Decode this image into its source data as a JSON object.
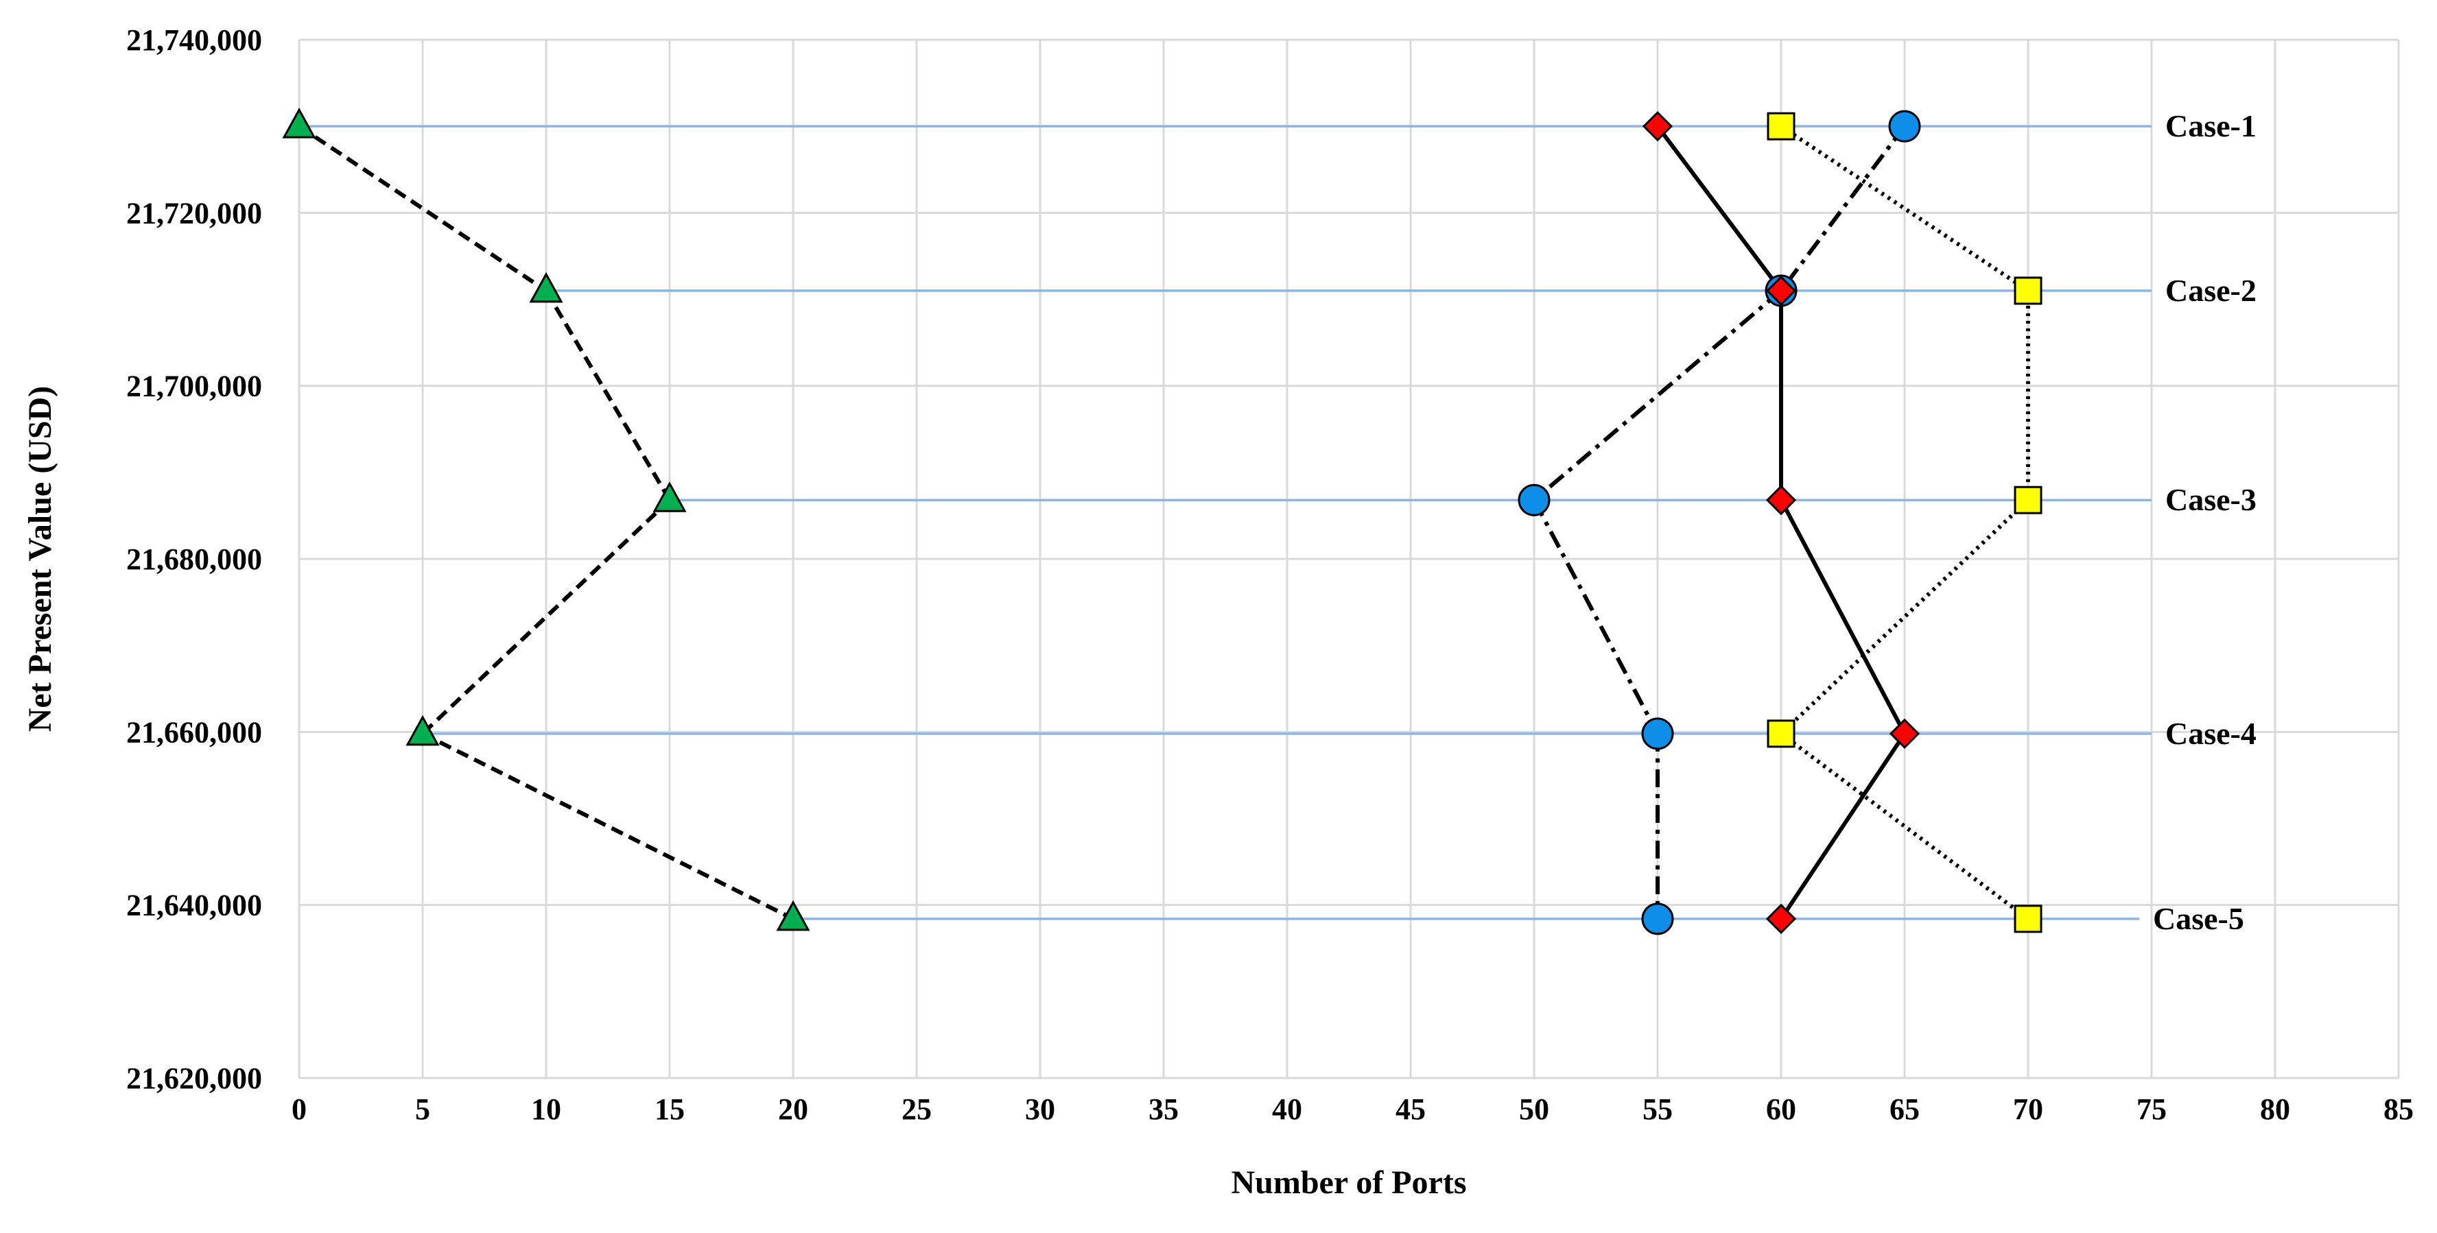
{
  "chart_data": {
    "type": "scatter",
    "title": "",
    "xlabel": "Number of Ports",
    "ylabel": "Net Present Value (USD)",
    "xlim": [
      0,
      85
    ],
    "ylim": [
      21620000,
      21740000
    ],
    "x_ticks": [
      0,
      5,
      10,
      15,
      20,
      25,
      30,
      35,
      40,
      45,
      50,
      55,
      60,
      65,
      70,
      75,
      80,
      85
    ],
    "y_ticks": [
      21620000,
      21640000,
      21660000,
      21680000,
      21700000,
      21720000,
      21740000
    ],
    "y_tick_labels": [
      "21,620,000",
      "21,640,000",
      "21,660,000",
      "21,680,000",
      "21,700,000",
      "21,720,000",
      "21,740,000"
    ],
    "grid": true,
    "legend": "none",
    "cases": [
      {
        "label": "Case-1",
        "y": 21730000,
        "x_start": 0,
        "x_end": 75
      },
      {
        "label": "Case-2",
        "y": 21711000,
        "x_start": 10,
        "x_end": 75
      },
      {
        "label": "Case-3",
        "y": 21686800,
        "x_start": 15,
        "x_end": 75
      },
      {
        "label": "Case-4",
        "y": 21659800,
        "x_start": 5,
        "x_end": 75
      },
      {
        "label": "Case-5",
        "y": 21638400,
        "x_start": 20,
        "x_end": 74.5
      }
    ],
    "case_line_color": "#8fb4e3",
    "series": [
      {
        "marker": "triangle",
        "color": "#00b050",
        "line_style": "dashed",
        "points": [
          {
            "x": 0,
            "y": 21730000
          },
          {
            "x": 10,
            "y": 21711000
          },
          {
            "x": 15,
            "y": 21686800
          },
          {
            "x": 5,
            "y": 21659800
          },
          {
            "x": 20,
            "y": 21638400
          }
        ]
      },
      {
        "marker": "circle",
        "color": "#0d8ee9",
        "line_style": "dash-dot",
        "points": [
          {
            "x": 65,
            "y": 21730000
          },
          {
            "x": 60,
            "y": 21711000
          },
          {
            "x": 50,
            "y": 21686800
          },
          {
            "x": 55,
            "y": 21659800
          },
          {
            "x": 55,
            "y": 21638400
          }
        ]
      },
      {
        "marker": "diamond",
        "color": "#ff0000",
        "line_style": "solid",
        "points": [
          {
            "x": 55,
            "y": 21730000
          },
          {
            "x": 60,
            "y": 21711000
          },
          {
            "x": 60,
            "y": 21686800
          },
          {
            "x": 65,
            "y": 21659800
          },
          {
            "x": 60,
            "y": 21638400
          }
        ]
      },
      {
        "marker": "square",
        "color": "#ffff00",
        "line_style": "dotted",
        "points": [
          {
            "x": 60,
            "y": 21730000
          },
          {
            "x": 70,
            "y": 21711000
          },
          {
            "x": 70,
            "y": 21686800
          },
          {
            "x": 60,
            "y": 21659800
          },
          {
            "x": 70,
            "y": 21638400
          }
        ]
      }
    ]
  }
}
